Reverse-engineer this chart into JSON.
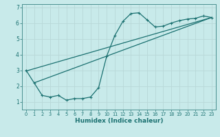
{
  "xlabel": "Humidex (Indice chaleur)",
  "bg_color": "#c8eaea",
  "grid_color": "#b8d8d8",
  "line_color": "#1a7070",
  "spine_color": "#4a9090",
  "xlim": [
    -0.5,
    23.5
  ],
  "ylim": [
    0.5,
    7.2
  ],
  "xticks": [
    0,
    1,
    2,
    3,
    4,
    5,
    6,
    7,
    8,
    9,
    10,
    11,
    12,
    13,
    14,
    15,
    16,
    17,
    18,
    19,
    20,
    21,
    22,
    23
  ],
  "yticks": [
    1,
    2,
    3,
    4,
    5,
    6,
    7
  ],
  "curve1_x": [
    0,
    1,
    2,
    3,
    4,
    5,
    6,
    7,
    8,
    9,
    10,
    11,
    12,
    13,
    14,
    15,
    16,
    17,
    18,
    19,
    20,
    21,
    22,
    23
  ],
  "curve1_y": [
    3.0,
    2.2,
    1.4,
    1.3,
    1.4,
    1.1,
    1.2,
    1.2,
    1.3,
    1.9,
    3.9,
    5.2,
    6.1,
    6.6,
    6.65,
    6.2,
    5.75,
    5.8,
    6.0,
    6.15,
    6.25,
    6.3,
    6.45,
    6.35
  ],
  "line1_x": [
    0,
    23
  ],
  "line1_y": [
    2.95,
    6.35
  ],
  "line2_x": [
    1,
    23
  ],
  "line2_y": [
    2.2,
    6.35
  ]
}
